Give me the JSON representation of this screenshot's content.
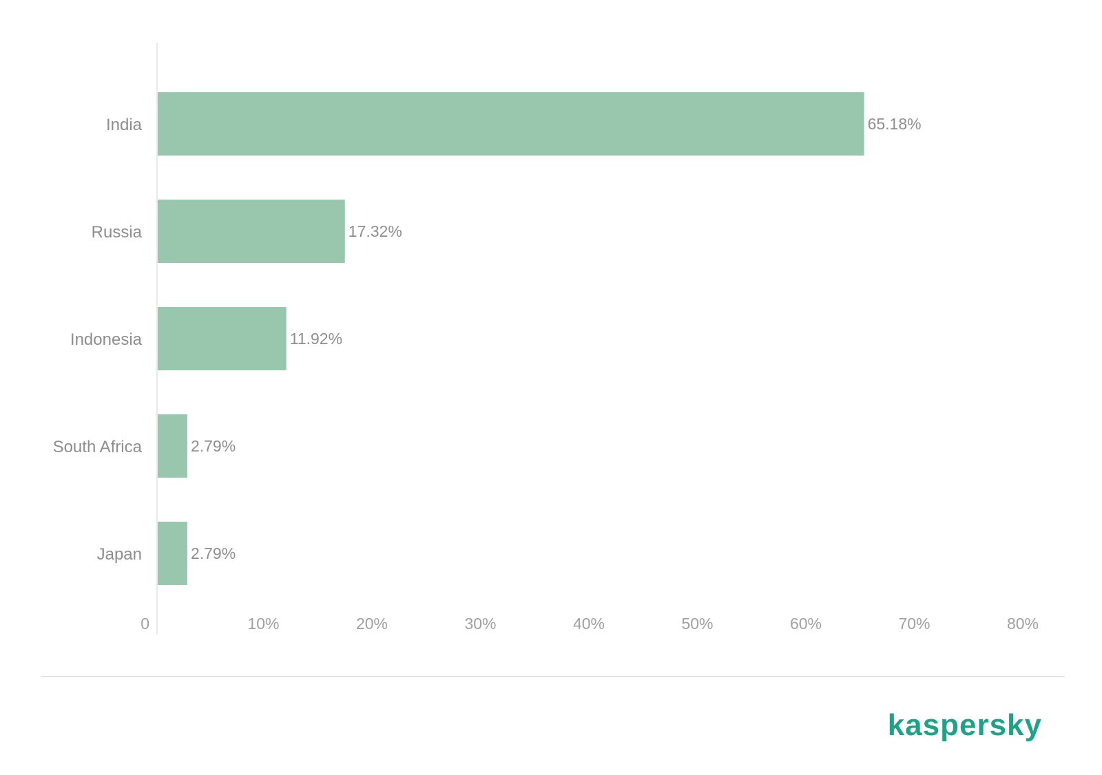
{
  "chart_data": {
    "type": "bar",
    "orientation": "horizontal",
    "categories": [
      "India",
      "Russia",
      "Indonesia",
      "South Africa",
      "Japan"
    ],
    "values": [
      65.18,
      17.32,
      11.92,
      2.79,
      2.79
    ],
    "data_labels": [
      "65.18%",
      "17.32%",
      "11.92%",
      "2.79%",
      "2.79%"
    ],
    "xlim": [
      0,
      80
    ],
    "xticks": [
      0,
      10,
      20,
      30,
      40,
      50,
      60,
      70,
      80
    ],
    "xtick_labels": [
      "0",
      "10%",
      "20%",
      "30%",
      "40%",
      "50%",
      "60%",
      "70%",
      "80%"
    ],
    "grid": false,
    "bar_color": "#99c7ae"
  },
  "brand": {
    "logo_text": "kaspersky",
    "color": "#1fa287"
  },
  "colors": {
    "axis": "#e2e2e2",
    "divider": "#d8d8d8"
  }
}
